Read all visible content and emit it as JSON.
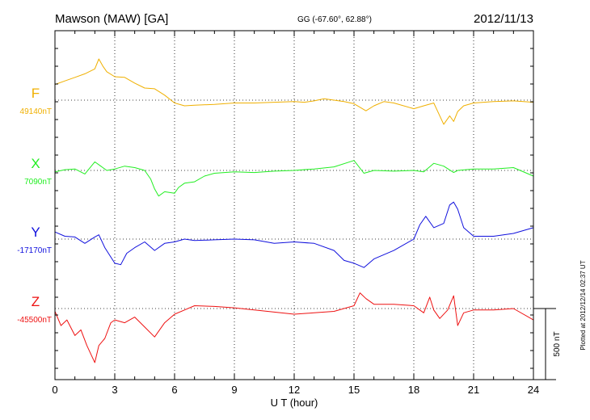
{
  "header": {
    "station": "Mawson (MAW)  [GA]",
    "coords": "GG (-67.60°,  62.88°)",
    "date": "2012/11/13"
  },
  "footer": {
    "plotted": "Plotted at 2012/12/14 02:37 UT"
  },
  "scale_bar": {
    "label": "500 nT"
  },
  "chart_data": {
    "type": "line",
    "xlabel": "U T (hour)",
    "xlim": [
      0,
      24
    ],
    "xticks": [
      "0",
      "3",
      "6",
      "9",
      "12",
      "15",
      "18",
      "21",
      "24"
    ],
    "grid": "dotted",
    "series": [
      {
        "name": "F",
        "baseline_label": "49140nT",
        "color": "#f0b000",
        "x": [
          0,
          0.5,
          1,
          1.5,
          2,
          2.2,
          2.4,
          2.6,
          3,
          3.5,
          4,
          4.5,
          5,
          5.5,
          6,
          6.5,
          7,
          8,
          9,
          10,
          11,
          12,
          12.5,
          13,
          13.5,
          14,
          14.5,
          15,
          15.3,
          15.6,
          16,
          16.5,
          17,
          18,
          18.5,
          19,
          19.2,
          19.5,
          19.8,
          20,
          20.2,
          20.5,
          21,
          22,
          23,
          24
        ],
        "y": [
          110,
          135,
          160,
          185,
          220,
          290,
          240,
          200,
          165,
          160,
          120,
          85,
          80,
          35,
          -20,
          -40,
          -35,
          -30,
          -20,
          -20,
          -15,
          -10,
          -15,
          -5,
          10,
          0,
          -10,
          -25,
          -50,
          -75,
          -40,
          -10,
          -20,
          -60,
          -40,
          -20,
          -80,
          -170,
          -110,
          -150,
          -80,
          -40,
          -20,
          -10,
          -5,
          -15
        ]
      },
      {
        "name": "X",
        "baseline_label": "7090nT",
        "color": "#22ee22",
        "x": [
          0,
          0.5,
          1,
          1.5,
          2,
          2.3,
          2.6,
          3,
          3.5,
          4,
          4.5,
          4.8,
          5,
          5.2,
          5.5,
          6,
          6.2,
          6.5,
          7,
          7.5,
          8,
          9,
          10,
          11,
          12,
          13,
          14,
          15,
          15.5,
          16,
          17,
          18,
          18.5,
          19,
          19.5,
          20,
          20.2,
          21,
          22,
          23,
          24
        ],
        "y": [
          -10,
          5,
          10,
          -25,
          60,
          30,
          0,
          10,
          30,
          20,
          0,
          -60,
          -130,
          -180,
          -150,
          -160,
          -120,
          -90,
          -80,
          -40,
          -20,
          -10,
          -15,
          -5,
          0,
          10,
          25,
          70,
          -20,
          0,
          -5,
          0,
          -10,
          50,
          30,
          -15,
          0,
          10,
          10,
          20,
          -40
        ]
      },
      {
        "name": "Y",
        "baseline_label": "-17170nT",
        "color": "#1010dd",
        "x": [
          0,
          0.5,
          1,
          1.5,
          2,
          2.2,
          2.5,
          3,
          3.3,
          3.6,
          4,
          4.5,
          5,
          5.5,
          6,
          6.5,
          7,
          8,
          9,
          10,
          11,
          12,
          13,
          14,
          14.5,
          15,
          15.5,
          16,
          17,
          18,
          18.3,
          18.6,
          19,
          19.5,
          19.8,
          20,
          20.2,
          20.5,
          21,
          22,
          23,
          24
        ],
        "y": [
          50,
          20,
          15,
          -30,
          15,
          30,
          -60,
          -170,
          -180,
          -100,
          -60,
          -20,
          -80,
          -30,
          -20,
          0,
          -10,
          -5,
          0,
          -5,
          -30,
          -20,
          -30,
          -80,
          -150,
          -170,
          -200,
          -140,
          -80,
          0,
          100,
          160,
          80,
          110,
          240,
          260,
          210,
          80,
          20,
          20,
          40,
          80
        ]
      },
      {
        "name": "Z",
        "baseline_label": "-45500nT",
        "color": "#ee1111",
        "x": [
          0,
          0.3,
          0.6,
          1,
          1.3,
          1.6,
          2,
          2.2,
          2.5,
          2.8,
          3,
          3.5,
          4,
          4.5,
          5,
          5.5,
          6,
          6.5,
          7,
          8,
          9,
          10,
          11,
          12,
          13,
          14,
          15,
          15.3,
          15.6,
          16,
          17,
          18,
          18.5,
          18.8,
          19,
          19.3,
          19.7,
          20,
          20.2,
          20.5,
          21,
          22,
          23,
          24
        ],
        "y": [
          -20,
          -120,
          -80,
          -190,
          -150,
          -260,
          -380,
          -260,
          -210,
          -100,
          -80,
          -100,
          -60,
          -130,
          -200,
          -100,
          -40,
          -10,
          20,
          15,
          5,
          -10,
          -25,
          -40,
          -30,
          -20,
          20,
          110,
          70,
          30,
          30,
          20,
          -30,
          80,
          -10,
          -70,
          -10,
          90,
          -120,
          -30,
          -10,
          -10,
          0,
          -80
        ]
      }
    ]
  }
}
